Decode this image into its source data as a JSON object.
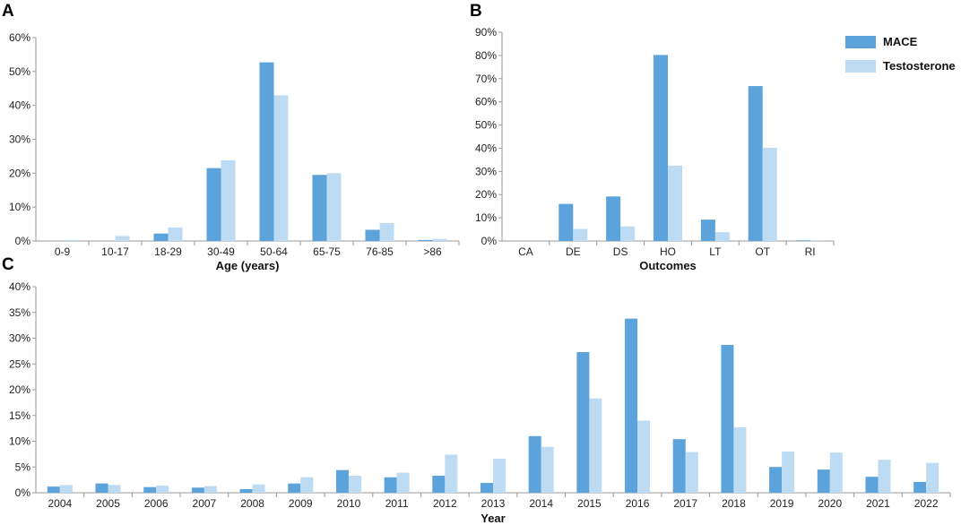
{
  "colors": {
    "mace": "#5BA3DA",
    "testosterone": "#BDDBF3",
    "axis": "#9a9a9a"
  },
  "legend": {
    "items": [
      {
        "name": "MACE",
        "color": "#5BA3DA"
      },
      {
        "name": "Testosterone",
        "color": "#BDDBF3"
      }
    ],
    "placement": "top-right"
  },
  "chart_data": [
    {
      "panel": "A",
      "type": "bar",
      "xlabel": "Age (years)",
      "ylabel": "",
      "ylim": [
        0,
        60
      ],
      "yticks": [
        "0%",
        "10%",
        "20%",
        "30%",
        "40%",
        "50%",
        "60%"
      ],
      "categories": [
        "0-9",
        "10-17",
        "18-29",
        "30-49",
        "50-64",
        "65-75",
        "76-85",
        ">86"
      ],
      "series": [
        {
          "name": "MACE",
          "values": [
            0,
            0,
            2.2,
            21.5,
            52.7,
            19.5,
            3.3,
            0.3
          ]
        },
        {
          "name": "Testosterone",
          "values": [
            0.3,
            1.5,
            4.0,
            23.8,
            43.0,
            20.0,
            5.3,
            0.6
          ]
        }
      ]
    },
    {
      "panel": "B",
      "type": "bar",
      "xlabel": "Outcomes",
      "ylabel": "",
      "ylim": [
        0,
        90
      ],
      "yticks": [
        "0%",
        "10%",
        "20%",
        "30%",
        "40%",
        "50%",
        "60%",
        "70%",
        "80%",
        "90%"
      ],
      "categories": [
        "CA",
        "DE",
        "DS",
        "HO",
        "LT",
        "OT",
        "RI"
      ],
      "series": [
        {
          "name": "MACE",
          "values": [
            0,
            16.0,
            19.2,
            80.2,
            9.2,
            66.8,
            0.3
          ]
        },
        {
          "name": "Testosterone",
          "values": [
            0,
            5.2,
            6.3,
            32.5,
            3.8,
            40.2,
            0.3
          ]
        }
      ]
    },
    {
      "panel": "C",
      "type": "bar",
      "xlabel": "Year",
      "ylabel": "",
      "ylim": [
        0,
        40
      ],
      "yticks": [
        "0%",
        "5%",
        "10%",
        "15%",
        "20%",
        "25%",
        "30%",
        "35%",
        "40%"
      ],
      "categories": [
        "2004",
        "2005",
        "2006",
        "2007",
        "2008",
        "2009",
        "2010",
        "2011",
        "2012",
        "2013",
        "2014",
        "2015",
        "2016",
        "2017",
        "2018",
        "2019",
        "2020",
        "2021",
        "2022"
      ],
      "series": [
        {
          "name": "MACE",
          "values": [
            1.2,
            1.8,
            1.1,
            1.0,
            0.7,
            1.8,
            4.4,
            3.0,
            3.3,
            1.9,
            11.0,
            27.3,
            33.8,
            10.4,
            28.7,
            5.0,
            4.5,
            3.1,
            2.1
          ]
        },
        {
          "name": "Testosterone",
          "values": [
            1.5,
            1.5,
            1.4,
            1.3,
            1.6,
            3.0,
            3.3,
            3.9,
            7.4,
            6.6,
            8.9,
            18.3,
            14.0,
            7.9,
            12.7,
            8.0,
            7.8,
            6.4,
            5.8
          ]
        }
      ]
    }
  ]
}
